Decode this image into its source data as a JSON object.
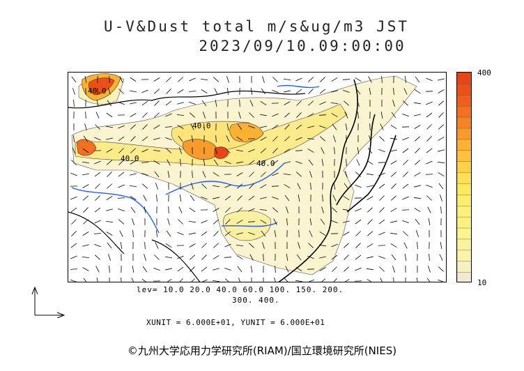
{
  "header": {
    "title_line1": "U-V&Dust total m/s&ug/m3 JST",
    "title_line2": "2023/09/10.09:00:00"
  },
  "map": {
    "contour_labels": [
      "40.0",
      "40.0",
      "40.0",
      "40.0"
    ]
  },
  "colorbar": {
    "max_label": "400",
    "min_label": "10",
    "colors": [
      "#f4e9d0",
      "#f8f0c0",
      "#faf3a8",
      "#fbf39a",
      "#fcf48c",
      "#fdf07e",
      "#fdf17a",
      "#fded6e",
      "#fde962",
      "#fde05a",
      "#fdd24a",
      "#fcc23e",
      "#fbb134",
      "#f99a2c",
      "#f78424",
      "#f4701e",
      "#f05e1a",
      "#ec5016",
      "#e84414"
    ]
  },
  "legend": {
    "levels_line1": "lev= 10.0 20.0 40.0 60.0 100. 150. 200.",
    "levels_line2": "300. 400.",
    "units": "XUNIT = 6.000E+01, YUNIT = 6.000E+01"
  },
  "footer": {
    "copyright": "©九州大学応用力学研究所(RIAM)/国立環境研究所(NIES)"
  }
}
